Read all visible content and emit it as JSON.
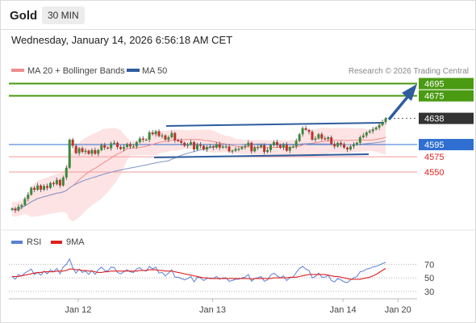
{
  "header": {
    "title": "Gold",
    "timeframe": "30 MIN",
    "datetime": "Wednesday, January 14, 2026 6:56:18 AM CET"
  },
  "legend": [
    {
      "name": "MA 20 + Bollinger Bands",
      "color": "#f08c8c"
    },
    {
      "name": "MA 50",
      "color": "#2f5c9e"
    }
  ],
  "copyright": "Research © 2026 Trading Central",
  "rsi_legend": [
    {
      "name": "RSI",
      "color": "#5b7fd6"
    },
    {
      "name": "9MA",
      "color": "#e02020"
    }
  ],
  "chart_data": {
    "type": "candlestick",
    "price_ylim": [
      4460,
      4705
    ],
    "levels": [
      {
        "value": 4695,
        "label": "4695",
        "color": "#4a9a12",
        "style": "resistance"
      },
      {
        "value": 4675,
        "label": "4675",
        "color": "#4a9a12",
        "style": "resistance"
      },
      {
        "value": 4638,
        "label": "4638",
        "color": "#333333",
        "style": "last"
      },
      {
        "value": 4595,
        "label": "4595",
        "color": "#2f6fd1",
        "style": "pivot"
      },
      {
        "value": 4575,
        "label": "4575",
        "color": "#e02020",
        "style": "support"
      },
      {
        "value": 4550,
        "label": "4550",
        "color": "#e02020",
        "style": "support"
      }
    ],
    "x_labels": [
      "Jan 12",
      "Jan 13",
      "Jan 14",
      "Jan 20"
    ],
    "x_label_pos": [
      0.17,
      0.5,
      0.82,
      0.955
    ],
    "close": [
      4490,
      4487,
      4493,
      4496,
      4506,
      4513,
      4524,
      4521,
      4528,
      4521,
      4527,
      4524,
      4532,
      4530,
      4537,
      4528,
      4541,
      4557,
      4603,
      4593,
      4581,
      4589,
      4583,
      4585,
      4580,
      4586,
      4580,
      4586,
      4594,
      4590,
      4589,
      4597,
      4598,
      4591,
      4588,
      4591,
      4596,
      4592,
      4592,
      4599,
      4605,
      4603,
      4603,
      4615,
      4612,
      4617,
      4609,
      4610,
      4603,
      4607,
      4614,
      4602,
      4601,
      4598,
      4593,
      4595,
      4599,
      4587,
      4595,
      4593,
      4587,
      4591,
      4592,
      4590,
      4596,
      4590,
      4592,
      4592,
      4584,
      4585,
      4588,
      4588,
      4591,
      4593,
      4598,
      4584,
      4590,
      4591,
      4594,
      4583,
      4586,
      4594,
      4599,
      4594,
      4590,
      4595,
      4585,
      4591,
      4592,
      4601,
      4612,
      4622,
      4619,
      4616,
      4603,
      4605,
      4612,
      4605,
      4604,
      4607,
      4596,
      4592,
      4598,
      4595,
      4590,
      4587,
      4592,
      4595,
      4598,
      4607,
      4610,
      4615,
      4617,
      4620,
      4623,
      4627,
      4632,
      4638
    ],
    "rsi_ylim": [
      25,
      80
    ],
    "rsi_ticks": [
      70,
      50,
      30
    ],
    "rsi": [
      52,
      48,
      55,
      53,
      57,
      60,
      63,
      55,
      58,
      54,
      60,
      56,
      62,
      59,
      64,
      56,
      66,
      70,
      78,
      65,
      57,
      63,
      58,
      60,
      55,
      61,
      55,
      62,
      66,
      61,
      60,
      66,
      65,
      58,
      56,
      59,
      62,
      59,
      58,
      63,
      65,
      61,
      60,
      67,
      63,
      66,
      57,
      58,
      53,
      57,
      62,
      51,
      51,
      49,
      47,
      49,
      52,
      44,
      51,
      50,
      46,
      49,
      50,
      49,
      52,
      48,
      50,
      50,
      45,
      46,
      48,
      48,
      50,
      51,
      55,
      45,
      49,
      50,
      52,
      45,
      47,
      54,
      57,
      53,
      50,
      53,
      46,
      50,
      51,
      58,
      64,
      67,
      63,
      61,
      50,
      52,
      57,
      51,
      51,
      54,
      46,
      44,
      49,
      47,
      44,
      43,
      47,
      50,
      52,
      59,
      60,
      63,
      64,
      66,
      67,
      69,
      71,
      73
    ],
    "rsi_ma9": [
      52,
      52,
      52,
      53,
      54,
      55,
      56,
      57,
      58,
      58,
      59,
      59,
      59,
      59,
      60,
      60,
      60,
      61,
      63,
      63,
      62,
      62,
      61,
      61,
      60,
      60,
      59,
      58,
      58,
      59,
      59,
      60,
      60,
      60,
      60,
      60,
      60,
      60,
      60,
      60,
      61,
      61,
      61,
      62,
      62,
      62,
      61,
      61,
      60,
      60,
      60,
      59,
      58,
      57,
      56,
      55,
      54,
      53,
      52,
      51,
      50,
      50,
      49,
      49,
      49,
      49,
      49,
      49,
      49,
      49,
      49,
      49,
      49,
      49,
      49,
      48,
      49,
      49,
      49,
      49,
      49,
      49,
      50,
      50,
      50,
      50,
      50,
      51,
      51,
      51,
      52,
      53,
      54,
      55,
      55,
      55,
      55,
      55,
      55,
      54,
      53,
      52,
      52,
      51,
      50,
      49,
      48,
      48,
      48,
      48,
      49,
      50,
      51,
      53,
      55,
      58,
      61,
      64
    ]
  }
}
